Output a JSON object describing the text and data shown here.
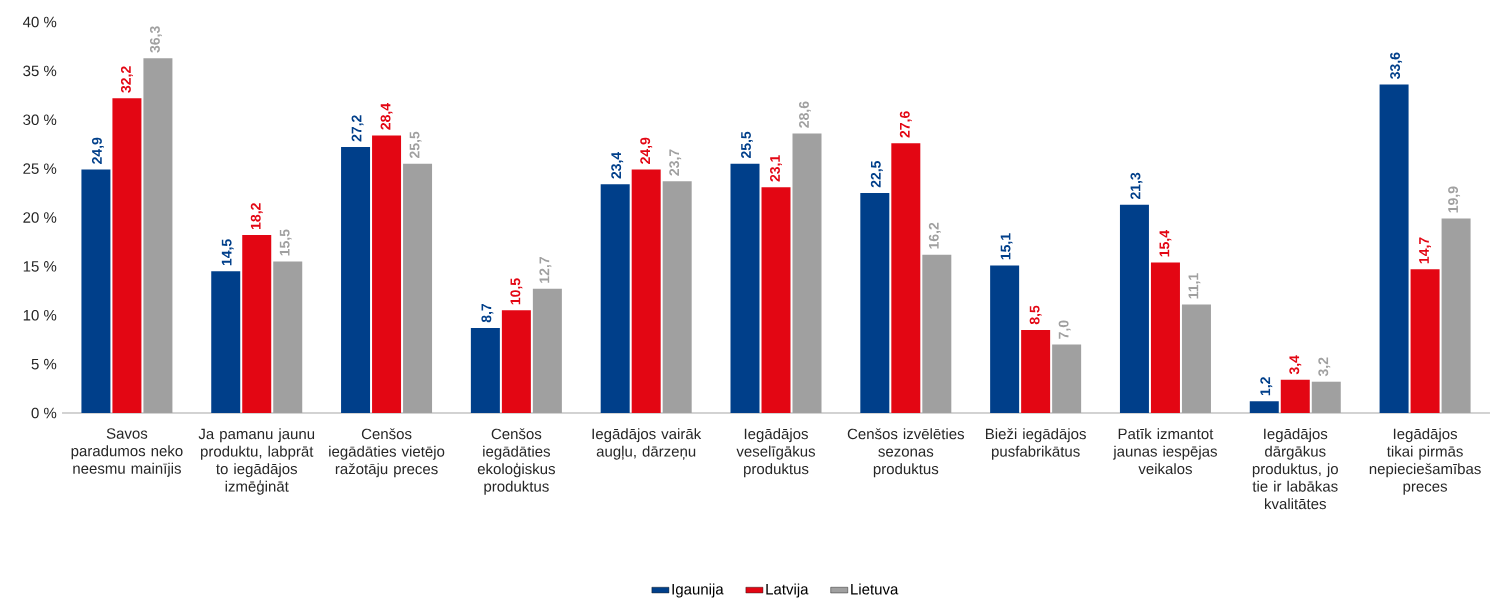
{
  "chart_data": {
    "type": "bar",
    "categories": [
      "Savos paradumos neko neesmu mainījis",
      "Ja pamanu jaunu produktu, labprāt to iegādājos izmēģināt",
      "Cenšos iegādāties vietējo ražotāju preces",
      "Cenšos iegādāties ekoloģiskus produktus",
      "Iegādājos vairāk augļu, dārzeņu",
      "Iegādājos veselīgākus produktus",
      "Cenšos izvēlēties sezonas produktus",
      "Bieži iegādājos pusfabrikātus",
      "Patīk izmantot jaunas iespējas veikalos",
      "Iegādājos dārgākus produktus, jo tie ir labākas kvalitātes",
      "Iegādājos tikai pirmās nepieciešamības preces"
    ],
    "series": [
      {
        "name": "Igaunija",
        "color": "#003f8a",
        "values": [
          24.9,
          14.5,
          27.2,
          8.7,
          23.4,
          25.5,
          22.5,
          15.1,
          21.3,
          1.2,
          33.6
        ],
        "value_labels": [
          "24,9",
          "14,5",
          "27,2",
          "8,7",
          "23,4",
          "25,5",
          "22,5",
          "15,1",
          "21,3",
          "1,2",
          "33,6"
        ]
      },
      {
        "name": "Latvija",
        "color": "#e30613",
        "values": [
          32.2,
          18.2,
          28.4,
          10.5,
          24.9,
          23.1,
          27.6,
          8.5,
          15.4,
          3.4,
          14.7
        ],
        "value_labels": [
          "32,2",
          "18,2",
          "28,4",
          "10,5",
          "24,9",
          "23,1",
          "27,6",
          "8,5",
          "15,4",
          "3,4",
          "14,7"
        ]
      },
      {
        "name": "Lietuva",
        "color": "#a0a0a0",
        "values": [
          36.3,
          15.5,
          25.5,
          12.7,
          23.7,
          28.6,
          16.2,
          7.0,
          11.1,
          3.2,
          19.9
        ],
        "value_labels": [
          "36,3",
          "15,5",
          "25,5",
          "12,7",
          "23,7",
          "28,6",
          "16,2",
          "7,0",
          "11,1",
          "3,2",
          "19,9"
        ]
      }
    ],
    "ylim": [
      0,
      40
    ],
    "yticks": [
      {
        "value": 0,
        "label": "0 %"
      },
      {
        "value": 5,
        "label": "5 %"
      },
      {
        "value": 10,
        "label": "10 %"
      },
      {
        "value": 15,
        "label": "15 %"
      },
      {
        "value": 20,
        "label": "20 %"
      },
      {
        "value": 25,
        "label": "25 %"
      },
      {
        "value": 30,
        "label": "30 %"
      },
      {
        "value": 35,
        "label": "35 %"
      },
      {
        "value": 40,
        "label": "40 %"
      }
    ],
    "grid": false,
    "legend": "bottom"
  }
}
